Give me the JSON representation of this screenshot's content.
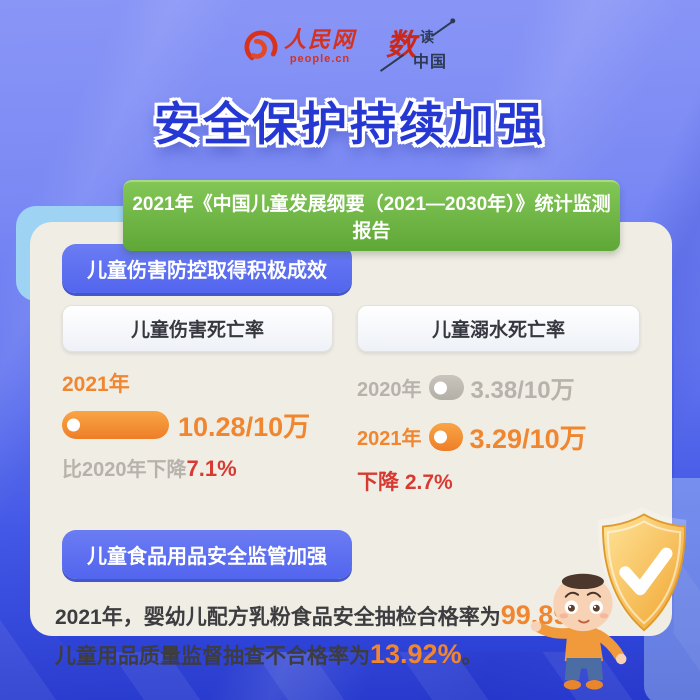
{
  "header": {
    "people_logo": {
      "name": "人民网",
      "domain": "people.cn"
    },
    "shudu_logo": {
      "shu": "数",
      "du": "读",
      "zhongguo": "中国"
    }
  },
  "title": "安全保护持续加强",
  "banner": "2021年《中国儿童发展纲要（2021—2030年）》统计监测报告",
  "sections": {
    "injury": {
      "badge": "儿童伤害防控取得积极成效",
      "left_panel": {
        "heading": "儿童伤害死亡率",
        "year": "2021年",
        "value": "10.28/10万",
        "note_prefix": "比2020年下降",
        "note_value": "7.1%"
      },
      "right_panel": {
        "heading": "儿童溺水死亡率",
        "rows": [
          {
            "year": "2020年",
            "value": "3.38/10万"
          },
          {
            "year": "2021年",
            "value": "3.29/10万"
          }
        ],
        "note_prefix": "下降",
        "note_value": "2.7%"
      }
    },
    "food": {
      "badge": "儿童食品用品安全监管加强",
      "line1_prefix": "2021年，婴幼儿配方乳粉食品安全抽检合格率为",
      "line1_value": "99.89%",
      "line1_suffix": "，",
      "line2_prefix": "儿童用品质量监督抽查不合格率为",
      "line2_value": "13.92%",
      "line2_suffix": "。"
    }
  },
  "icons": {
    "shield": "shield-check-icon",
    "mascot": "baby-mascot",
    "brand": "people-cn-swirl-icon"
  },
  "colors": {
    "background_top": "#8a96f6",
    "background_bottom": "#2639cc",
    "title_blue": "#2638d4",
    "banner_green": "#6ab33f",
    "card_cream": "#f0ede5",
    "badge_blue": "#5b6ef0",
    "accent_orange": "#f0862f",
    "muted_gray": "#b7b3ac",
    "alert_red": "#d83a31",
    "shield_gold": "#f5b942",
    "brand_red": "#d5311f"
  },
  "chart_data": [
    {
      "type": "bar",
      "title": "儿童伤害死亡率",
      "categories": [
        "2021年"
      ],
      "values": [
        10.28
      ],
      "unit": "/10万",
      "annotation": "比2020年下降7.1%"
    },
    {
      "type": "bar",
      "title": "儿童溺水死亡率",
      "categories": [
        "2020年",
        "2021年"
      ],
      "values": [
        3.38,
        3.29
      ],
      "unit": "/10万",
      "annotation": "下降2.7%"
    },
    {
      "type": "table",
      "title": "儿童食品用品安全监管加强",
      "rows": [
        {
          "label": "2021年婴幼儿配方乳粉食品安全抽检合格率",
          "value": "99.89%"
        },
        {
          "label": "儿童用品质量监督抽查不合格率",
          "value": "13.92%"
        }
      ]
    }
  ]
}
